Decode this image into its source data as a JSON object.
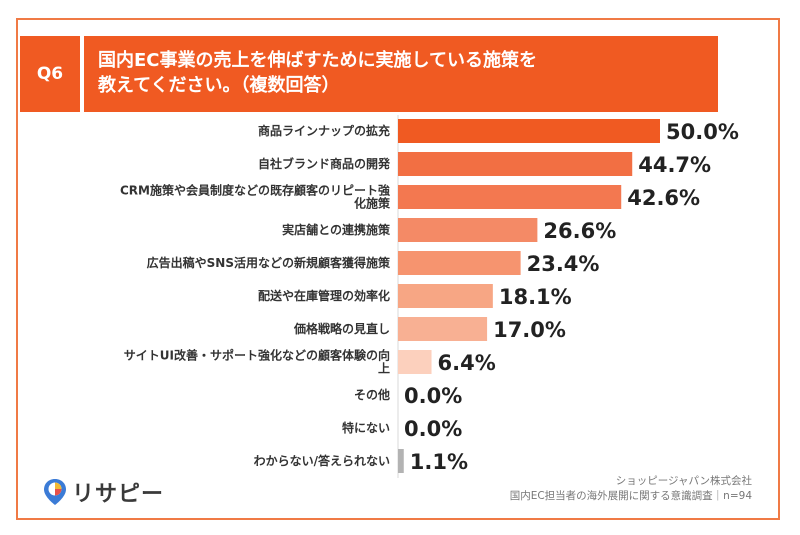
{
  "header": {
    "badge": "Q6",
    "title_line1": "国内EC事業の売上を伸ばすために実施している施策を",
    "title_line2": "教えてください。（複数回答）"
  },
  "footer": {
    "logo_text": "リサピー",
    "source_line1": "ショッピージャパン株式会社",
    "source_line2": "国内EC担当者の海外展開に関する意識調査｜n=94"
  },
  "colors": {
    "accent": "#f05a22",
    "bar_gray": "#b3b3b3"
  },
  "chart_data": {
    "type": "bar",
    "orientation": "horizontal",
    "value_suffix": "%",
    "xlim": [
      0,
      50
    ],
    "grid": false,
    "categories": [
      [
        "商品ラインナップの拡充"
      ],
      [
        "自社ブランド商品の開発"
      ],
      [
        "CRM施策や会員制度などの既存顧客のリピート強",
        "化施策"
      ],
      [
        "実店舗との連携施策"
      ],
      [
        "広告出稿やSNS活用などの新規顧客獲得施策"
      ],
      [
        "配送や在庫管理の効率化"
      ],
      [
        "価格戦略の見直し"
      ],
      [
        "サイトUI改善・サポート強化などの顧客体験の向",
        "上"
      ],
      [
        "その他"
      ],
      [
        "特にない"
      ],
      [
        "わからない/答えられない"
      ]
    ],
    "values": [
      50.0,
      44.7,
      42.6,
      26.6,
      23.4,
      18.1,
      17.0,
      6.4,
      0.0,
      0.0,
      1.1
    ],
    "data_labels": [
      "50.0%",
      "44.7%",
      "42.6%",
      "26.6%",
      "23.4%",
      "18.1%",
      "17.0%",
      "6.4%",
      "0.0%",
      "0.0%",
      "1.1%"
    ],
    "bar_colors": [
      "#f05a22",
      "#f26f43",
      "#f37850",
      "#f48a66",
      "#f6946f",
      "#f7a684",
      "#f8b093",
      "#fcd0bd",
      "#fcd0bd",
      "#fcd0bd",
      "#b3b3b3"
    ]
  }
}
